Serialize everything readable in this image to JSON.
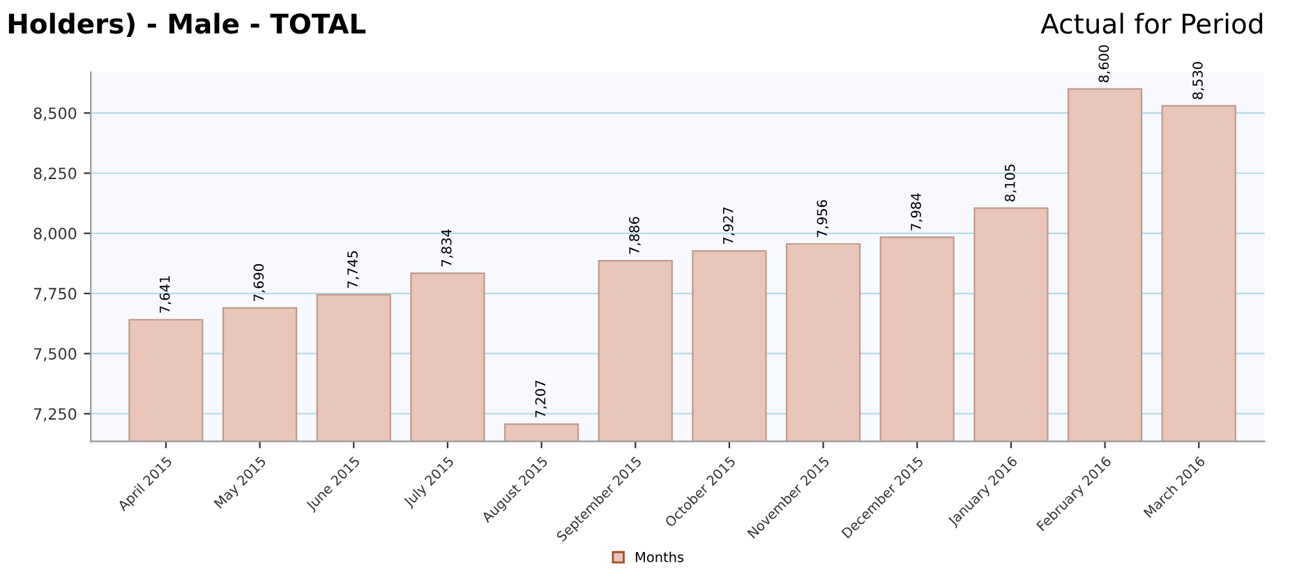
{
  "chart_data": {
    "type": "bar",
    "title": "Holders) - Male - TOTAL",
    "subtitle": "Actual for Period",
    "categories": [
      "April 2015",
      "May 2015",
      "June 2015",
      "July 2015",
      "August 2015",
      "September 2015",
      "October 2015",
      "November 2015",
      "December 2015",
      "January 2016",
      "February 2016",
      "March 2016"
    ],
    "series": [
      {
        "name": "Months",
        "color": "#e9c6b9",
        "values": [
          7641,
          7690,
          7745,
          7834,
          7207,
          7886,
          7927,
          7956,
          7984,
          8105,
          8600,
          8530
        ],
        "value_labels": [
          "7,641",
          "7,690",
          "7,745",
          "7,834",
          "7,207",
          "7,886",
          "7,927",
          "7,956",
          "7,984",
          "8,105",
          "8,600",
          "8,530"
        ]
      }
    ],
    "ylim": [
      7135,
      8670
    ],
    "yticks": [
      {
        "value": 7250,
        "label": "7,250"
      },
      {
        "value": 7500,
        "label": "7,500"
      },
      {
        "value": 7750,
        "label": "7,750"
      },
      {
        "value": 8000,
        "label": "8,000"
      },
      {
        "value": 8250,
        "label": "8,250"
      },
      {
        "value": 8500,
        "label": "8,500"
      }
    ],
    "grid": "y",
    "legend": "bottom"
  }
}
